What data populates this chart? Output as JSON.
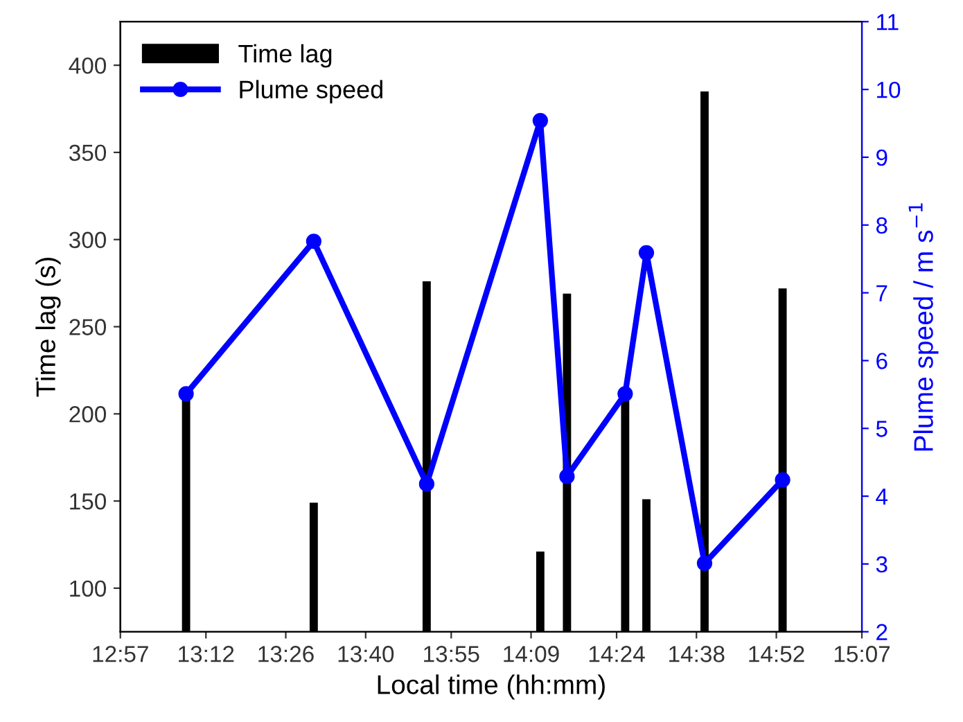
{
  "chart_data": {
    "type": "bar",
    "xlabel": "Local time (hh:mm)",
    "ylabel": "Time lag (s)",
    "y2label": "Plume speed / m s$^{−1}$",
    "x": [
      13.142,
      13.515,
      13.845,
      14.177,
      14.255,
      14.425,
      14.487,
      14.657,
      14.885
    ],
    "series": [
      {
        "name": "Time lag",
        "color": "#000000",
        "values": [
          210,
          149,
          276,
          121,
          269,
          210,
          151,
          385,
          272
        ]
      },
      {
        "name": "Plume speed",
        "type": "line",
        "axis": "y2",
        "color": "#0000ff",
        "values": [
          5.51,
          7.76,
          4.18,
          9.54,
          4.29,
          5.51,
          7.59,
          3.01,
          4.24
        ]
      }
    ],
    "xlim": [
      12.95,
      15.1167
    ],
    "xticks": [
      {
        "value": 12.95,
        "label": "12:57"
      },
      {
        "value": 13.2,
        "label": "13:12"
      },
      {
        "value": 13.4333,
        "label": "13:26"
      },
      {
        "value": 13.6667,
        "label": "13:40"
      },
      {
        "value": 13.9167,
        "label": "13:55"
      },
      {
        "value": 14.15,
        "label": "14:09"
      },
      {
        "value": 14.4,
        "label": "14:24"
      },
      {
        "value": 14.6333,
        "label": "14:38"
      },
      {
        "value": 14.8667,
        "label": "14:52"
      },
      {
        "value": 15.1167,
        "label": "15:07"
      }
    ],
    "ylim": [
      75,
      425
    ],
    "yticks": [
      100,
      150,
      200,
      250,
      300,
      350,
      400
    ],
    "y2lim": [
      2,
      11
    ],
    "y2ticks": [
      2,
      3,
      4,
      5,
      6,
      7,
      8,
      9,
      10,
      11
    ],
    "legend": "top left",
    "marker": "circle",
    "line_style": "solid",
    "grid": false
  }
}
